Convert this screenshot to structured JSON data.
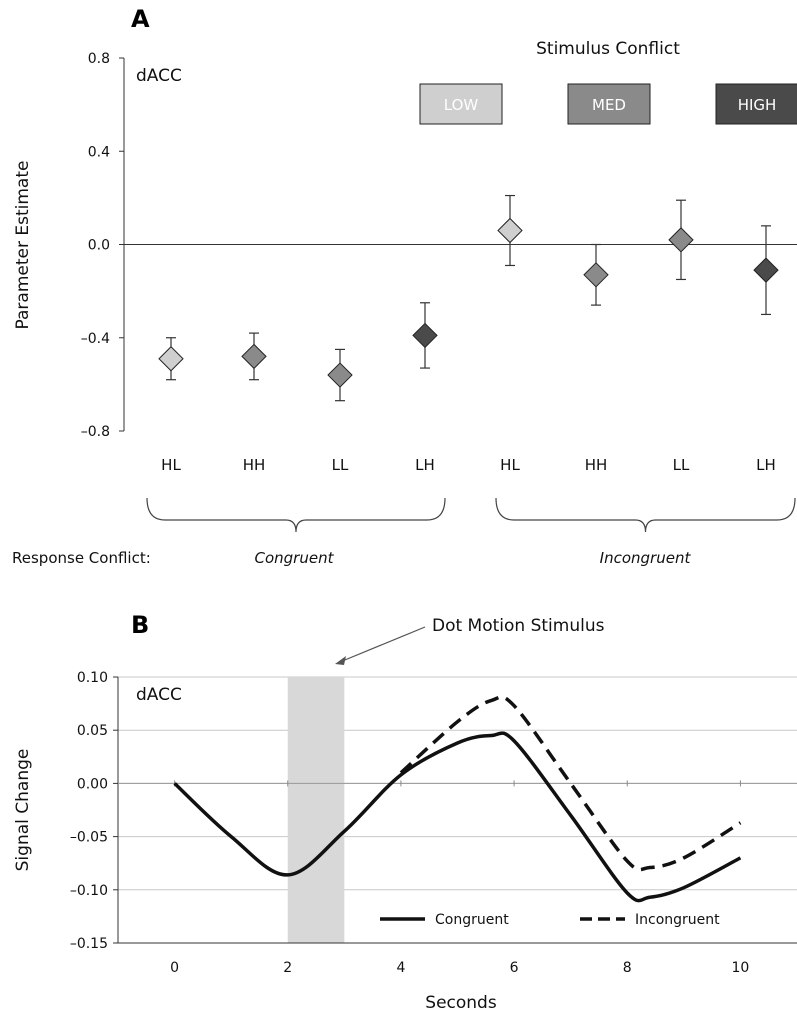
{
  "chart_data": [
    {
      "panel": "A",
      "type": "scatter",
      "region_label": "dACC",
      "ylabel": "Parameter Estimate",
      "ylim": [
        -0.8,
        0.8
      ],
      "yticks": [
        "0.8",
        "0.4",
        "0.0",
        "–0.4",
        "–0.8"
      ],
      "ytick_values": [
        0.8,
        0.4,
        0.0,
        -0.4,
        -0.8
      ],
      "categories": [
        "HL",
        "HH",
        "LL",
        "LH",
        "HL",
        "HH",
        "LL",
        "LH"
      ],
      "legend_title": "Stimulus Conflict",
      "legend_entries": [
        {
          "label": "LOW",
          "color": "#cfcfcf",
          "text_color": "#ffffff"
        },
        {
          "label": "MED",
          "color": "#8a8a8a",
          "text_color": "#ffffff"
        },
        {
          "label": "HIGH",
          "color": "#4a4a4a",
          "text_color": "#ffffff"
        }
      ],
      "points": [
        {
          "category": "HL",
          "group": "Congruent",
          "level": "LOW",
          "value": -0.49,
          "err_low": -0.58,
          "err_high": -0.4
        },
        {
          "category": "HH",
          "group": "Congruent",
          "level": "MED",
          "value": -0.48,
          "err_low": -0.58,
          "err_high": -0.38
        },
        {
          "category": "LL",
          "group": "Congruent",
          "level": "MED",
          "value": -0.56,
          "err_low": -0.67,
          "err_high": -0.45
        },
        {
          "category": "LH",
          "group": "Congruent",
          "level": "HIGH",
          "value": -0.39,
          "err_low": -0.53,
          "err_high": -0.25
        },
        {
          "category": "HL",
          "group": "Incongruent",
          "level": "LOW",
          "value": 0.06,
          "err_low": -0.09,
          "err_high": 0.21
        },
        {
          "category": "HH",
          "group": "Incongruent",
          "level": "MED",
          "value": -0.13,
          "err_low": -0.26,
          "err_high": 0.0
        },
        {
          "category": "LL",
          "group": "Incongruent",
          "level": "MED",
          "value": 0.02,
          "err_low": -0.15,
          "err_high": 0.19
        },
        {
          "category": "LH",
          "group": "Incongruent",
          "level": "HIGH",
          "value": -0.11,
          "err_low": -0.3,
          "err_high": 0.08
        }
      ],
      "group_label_prefix": "Response Conflict:",
      "groups": [
        "Congruent",
        "Incongruent"
      ]
    },
    {
      "panel": "B",
      "type": "line",
      "region_label": "dACC",
      "xlabel": "Seconds",
      "ylabel": "Signal Change",
      "xlim": [
        -1,
        11
      ],
      "xticks": [
        "0",
        "2",
        "4",
        "6",
        "8",
        "10"
      ],
      "xtick_values": [
        0,
        2,
        4,
        6,
        8,
        10
      ],
      "ylim": [
        -0.15,
        0.1
      ],
      "yticks": [
        "0.10",
        "0.05",
        "0.00",
        "–0.05",
        "–0.10",
        "–0.15"
      ],
      "ytick_values": [
        0.1,
        0.05,
        0.0,
        -0.05,
        -0.1,
        -0.15
      ],
      "grid": true,
      "stimulus_window": [
        2,
        3
      ],
      "annotation": "Dot Motion Stimulus",
      "series": [
        {
          "name": "Congruent",
          "style": "solid",
          "x": [
            0,
            1,
            2,
            3,
            4,
            5,
            5.6,
            6,
            7,
            8,
            8.4,
            9,
            10
          ],
          "y": [
            0.0,
            -0.05,
            -0.086,
            -0.045,
            0.008,
            0.038,
            0.045,
            0.04,
            -0.03,
            -0.103,
            -0.107,
            -0.098,
            -0.07
          ]
        },
        {
          "name": "Incongruent",
          "style": "dashed",
          "x": [
            4,
            5,
            5.6,
            6,
            7,
            8,
            8.4,
            9,
            10
          ],
          "y": [
            0.01,
            0.058,
            0.078,
            0.073,
            0.0,
            -0.073,
            -0.079,
            -0.07,
            -0.037
          ]
        }
      ],
      "legend_position": "bottom-right"
    }
  ]
}
